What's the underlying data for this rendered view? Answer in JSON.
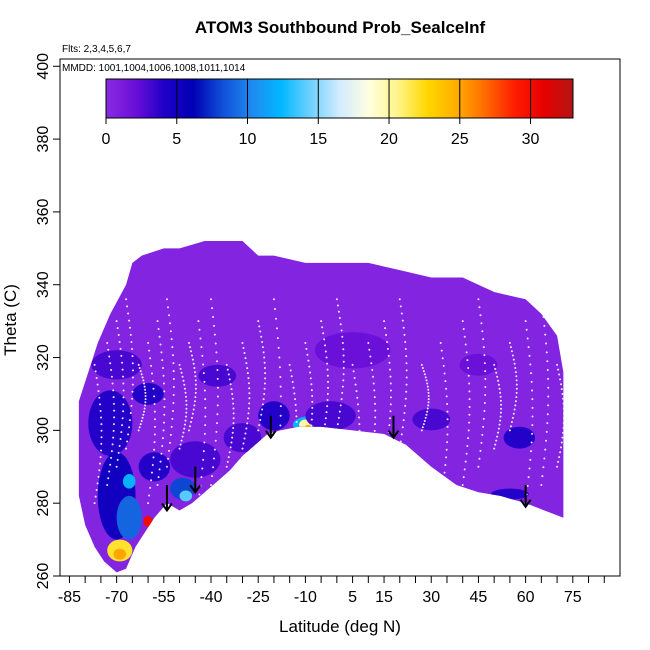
{
  "chart_data": {
    "type": "heatmap",
    "title": "ATOM3 Southbound Prob_SealceInf",
    "annotations": {
      "flights": "Flts: 2,3,4,5,6,7",
      "dates": "MMDD: 1001,1004,1006,1008,1011,1014"
    },
    "xlabel": "Latitude (deg N)",
    "ylabel": "Theta (C)",
    "xlim": [
      -88,
      90
    ],
    "ylim": [
      260,
      402
    ],
    "x_ticks": [
      "-85",
      "-70",
      "-55",
      "-40",
      "-25",
      "-10",
      "5",
      "15",
      "30",
      "45",
      "60",
      "75"
    ],
    "x_tick_values": [
      -85,
      -70,
      -55,
      -40,
      -25,
      -10,
      5,
      15,
      30,
      45,
      60,
      75
    ],
    "y_ticks": [
      "260",
      "280",
      "300",
      "320",
      "340",
      "360",
      "380",
      "400"
    ],
    "y_tick_values": [
      260,
      280,
      300,
      320,
      340,
      360,
      380,
      400
    ],
    "colorbar": {
      "range": [
        0,
        33
      ],
      "ticks": [
        "0",
        "5",
        "10",
        "15",
        "20",
        "25",
        "30"
      ],
      "tick_values": [
        0,
        5,
        10,
        15,
        20,
        25,
        30
      ],
      "colors": [
        "#8a2be2",
        "#6a0fd8",
        "#1f00c8",
        "#0000b4",
        "#1050d8",
        "#1f8af0",
        "#00b8ff",
        "#6fd0ff",
        "#d2ebff",
        "#ffffe0",
        "#fff48a",
        "#ffd700",
        "#ffae00",
        "#ff6a00",
        "#ff1d00",
        "#e60000",
        "#b31515"
      ]
    },
    "background_value": 0.5,
    "domain_top": [
      [
        -82,
        308
      ],
      [
        -79,
        316
      ],
      [
        -76,
        324
      ],
      [
        -72,
        332
      ],
      [
        -67,
        340
      ],
      [
        -65,
        346
      ],
      [
        -62,
        348
      ],
      [
        -55,
        350
      ],
      [
        -50,
        350
      ],
      [
        -42,
        352
      ],
      [
        -40,
        352
      ],
      [
        -30,
        352
      ],
      [
        -25,
        348
      ],
      [
        -20,
        348
      ],
      [
        -10,
        346
      ],
      [
        0,
        346
      ],
      [
        10,
        346
      ],
      [
        20,
        344
      ],
      [
        30,
        342
      ],
      [
        40,
        342
      ],
      [
        50,
        338
      ],
      [
        60,
        336
      ],
      [
        65,
        332
      ],
      [
        70,
        326
      ],
      [
        72,
        316
      ]
    ],
    "domain_bottom": [
      [
        -82,
        282
      ],
      [
        -80,
        274
      ],
      [
        -77,
        268
      ],
      [
        -74,
        264
      ],
      [
        -70,
        261
      ],
      [
        -67,
        262
      ],
      [
        -64,
        268
      ],
      [
        -61,
        272
      ],
      [
        -58,
        276
      ],
      [
        -54,
        280
      ],
      [
        -50,
        278
      ],
      [
        -46,
        280
      ],
      [
        -42,
        283
      ],
      [
        -38,
        286
      ],
      [
        -34,
        289
      ],
      [
        -30,
        293
      ],
      [
        -26,
        296
      ],
      [
        -22,
        299
      ],
      [
        -18,
        300
      ],
      [
        -12,
        301
      ],
      [
        -5,
        301
      ],
      [
        5,
        300
      ],
      [
        15,
        299
      ],
      [
        22,
        296
      ],
      [
        30,
        290
      ],
      [
        38,
        285
      ],
      [
        45,
        283
      ],
      [
        52,
        282
      ],
      [
        60,
        280
      ],
      [
        66,
        278
      ],
      [
        72,
        276
      ]
    ],
    "hotspots": [
      {
        "x": -72,
        "y": 302,
        "rx": 7,
        "ry": 9,
        "value": 4
      },
      {
        "x": -70,
        "y": 282,
        "rx": 6,
        "ry": 12,
        "value": 5
      },
      {
        "x": -66,
        "y": 276,
        "rx": 4,
        "ry": 6,
        "value": 9
      },
      {
        "x": -69,
        "y": 267,
        "rx": 4,
        "ry": 3,
        "value": 22
      },
      {
        "x": -69,
        "y": 266,
        "rx": 2,
        "ry": 1.5,
        "value": 25
      },
      {
        "x": -66,
        "y": 286,
        "rx": 2,
        "ry": 2,
        "value": 12
      },
      {
        "x": -60,
        "y": 275,
        "rx": 1.5,
        "ry": 1.5,
        "value": 30
      },
      {
        "x": -58,
        "y": 290,
        "rx": 5,
        "ry": 4,
        "value": 4
      },
      {
        "x": -49,
        "y": 284,
        "rx": 4,
        "ry": 3,
        "value": 8
      },
      {
        "x": -48,
        "y": 282,
        "rx": 2,
        "ry": 1.5,
        "value": 14
      },
      {
        "x": -45,
        "y": 292,
        "rx": 8,
        "ry": 5,
        "value": 3
      },
      {
        "x": -30,
        "y": 298,
        "rx": 6,
        "ry": 4,
        "value": 3
      },
      {
        "x": -20,
        "y": 304,
        "rx": 5,
        "ry": 4,
        "value": 4
      },
      {
        "x": -8,
        "y": 301.5,
        "rx": 6,
        "ry": 2.5,
        "value": 12
      },
      {
        "x": -10,
        "y": 301.5,
        "rx": 2,
        "ry": 1.5,
        "value": 20
      },
      {
        "x": -9,
        "y": 300.5,
        "rx": 1.5,
        "ry": 1,
        "value": 25
      },
      {
        "x": -2,
        "y": 304,
        "rx": 8,
        "ry": 4,
        "value": 3
      },
      {
        "x": -70,
        "y": 318,
        "rx": 8,
        "ry": 4,
        "value": 3
      },
      {
        "x": -60,
        "y": 310,
        "rx": 5,
        "ry": 3,
        "value": 4
      },
      {
        "x": 5,
        "y": 322,
        "rx": 12,
        "ry": 5,
        "value": 2
      },
      {
        "x": 30,
        "y": 303,
        "rx": 6,
        "ry": 3,
        "value": 3
      },
      {
        "x": 58,
        "y": 298,
        "rx": 5,
        "ry": 3,
        "value": 4
      },
      {
        "x": 55,
        "y": 282.5,
        "rx": 6,
        "ry": 1.5,
        "value": 4
      },
      {
        "x": 45,
        "y": 318,
        "rx": 6,
        "ry": 3,
        "value": 2
      },
      {
        "x": -38,
        "y": 315,
        "rx": 6,
        "ry": 3,
        "value": 3
      }
    ],
    "arrows": [
      {
        "x": -54,
        "y_top": 285,
        "y_bottom": 278
      },
      {
        "x": -45,
        "y_top": 290,
        "y_bottom": 283
      },
      {
        "x": -21,
        "y_top": 304,
        "y_bottom": 298
      },
      {
        "x": 18,
        "y_top": 304,
        "y_bottom": 298
      },
      {
        "x": 60,
        "y_top": 285,
        "y_bottom": 279
      }
    ]
  }
}
